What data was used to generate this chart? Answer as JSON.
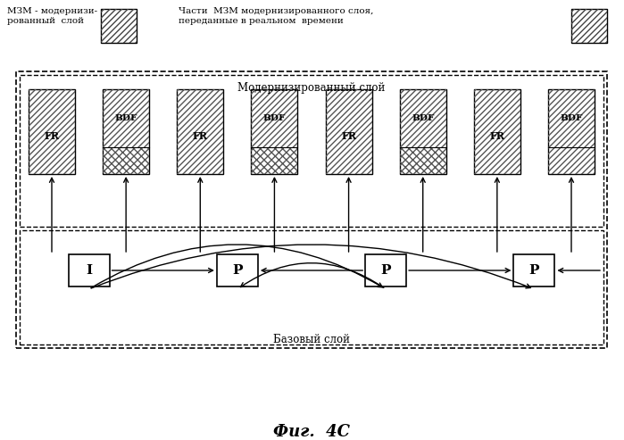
{
  "legend1_text": "МЗМ - модернизи-\nрованный  слой",
  "legend2_text": "Части  МЗМ модернизированного слоя,\nпереданные в реальном  времени",
  "enhanced_label": "Модернизированный слой",
  "base_label": "Базовый слой",
  "figure_label": "Фиг.  4C",
  "frame_labels": [
    "FR",
    "BDF",
    "FR",
    "BDF",
    "FR",
    "BDF",
    "FR",
    "BDF"
  ],
  "base_labels": [
    "I",
    "P",
    "P",
    "P"
  ],
  "bg": "#ffffff"
}
